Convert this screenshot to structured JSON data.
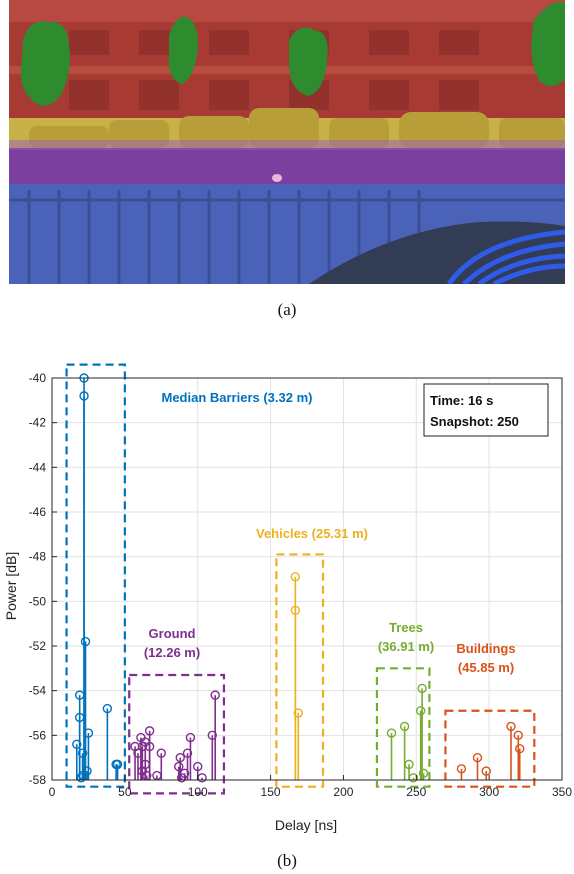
{
  "captions": {
    "top": "(a)",
    "bottom": "(b)"
  },
  "scene": {
    "description_icon": "street-scene-semantic-segmentation",
    "colors": {
      "buildings": "#a83a34",
      "trees": "#2e8b2e",
      "vehicles": "#c9b14a",
      "ground": "#7b3fa0",
      "barrier": "#4a63b8"
    }
  },
  "chart_data": {
    "type": "scatter",
    "xlabel": "Delay [ns]",
    "ylabel": "Power [dB]",
    "xlim": [
      0,
      350
    ],
    "ylim": [
      -58,
      -40
    ],
    "xticks": [
      0,
      50,
      100,
      150,
      200,
      250,
      300,
      350
    ],
    "yticks": [
      -40,
      -42,
      -44,
      -46,
      -48,
      -50,
      -52,
      -54,
      -56,
      -58
    ],
    "grid": true,
    "info_box": {
      "line1": "Time: 16 s",
      "line2": "Snapshot: 250"
    },
    "series": [
      {
        "name": "Median Barriers (3.32 m)",
        "color": "#0072BD",
        "box": {
          "x": [
            10,
            50
          ],
          "y": [
            -58.3,
            -39.4
          ]
        },
        "label_lines": [
          "Median Barriers (3.32 m)"
        ],
        "points": [
          [
            17,
            -56.4
          ],
          [
            19,
            -54.2
          ],
          [
            19,
            -55.2
          ],
          [
            20,
            -57.9
          ],
          [
            21,
            -56.8
          ],
          [
            21,
            -57.8
          ],
          [
            22,
            -40.0
          ],
          [
            22,
            -40.8
          ],
          [
            23,
            -51.8
          ],
          [
            24,
            -57.6
          ],
          [
            25,
            -55.9
          ],
          [
            38,
            -54.8
          ],
          [
            44,
            -57.3
          ],
          [
            45,
            -57.3
          ]
        ]
      },
      {
        "name": "Ground (12.26 m)",
        "color": "#7E2F8E",
        "box": {
          "x": [
            53,
            118
          ],
          "y": [
            -58.6,
            -53.3
          ]
        },
        "label_lines": [
          "Ground",
          "(12.26 m)"
        ],
        "points": [
          [
            57,
            -56.5
          ],
          [
            59,
            -56.8
          ],
          [
            61,
            -56.1
          ],
          [
            62,
            -57.6
          ],
          [
            62,
            -56.5
          ],
          [
            64,
            -57.3
          ],
          [
            64,
            -56.3
          ],
          [
            65,
            -57.8
          ],
          [
            67,
            -56.5
          ],
          [
            67,
            -55.8
          ],
          [
            72,
            -57.8
          ],
          [
            75,
            -56.8
          ],
          [
            87,
            -57.4
          ],
          [
            88,
            -57.0
          ],
          [
            89,
            -57.9
          ],
          [
            91,
            -57.7
          ],
          [
            93,
            -56.8
          ],
          [
            95,
            -56.1
          ],
          [
            100,
            -57.4
          ],
          [
            103,
            -57.9
          ],
          [
            110,
            -56.0
          ],
          [
            112,
            -54.2
          ]
        ]
      },
      {
        "name": "Vehicles (25.31 m)",
        "color": "#EDB120",
        "box": {
          "x": [
            154,
            186
          ],
          "y": [
            -58.3,
            -47.9
          ]
        },
        "label_lines": [
          "Vehicles (25.31 m)"
        ],
        "points": [
          [
            167,
            -48.9
          ],
          [
            167,
            -50.4
          ],
          [
            169,
            -55.0
          ]
        ]
      },
      {
        "name": "Trees (36.91 m)",
        "color": "#77AC30",
        "box": {
          "x": [
            223,
            259
          ],
          "y": [
            -58.3,
            -53.0
          ]
        },
        "label_lines": [
          "Trees",
          "(36.91 m)"
        ],
        "points": [
          [
            233,
            -55.9
          ],
          [
            242,
            -55.6
          ],
          [
            245,
            -57.3
          ],
          [
            248,
            -57.9
          ],
          [
            253,
            -54.9
          ],
          [
            254,
            -53.9
          ],
          [
            255,
            -57.7
          ]
        ]
      },
      {
        "name": "Buildings (45.85 m)",
        "color": "#D95319",
        "box": {
          "x": [
            270,
            331
          ],
          "y": [
            -58.3,
            -54.9
          ]
        },
        "label_lines": [
          "Buildings",
          "(45.85 m)"
        ],
        "points": [
          [
            281,
            -57.5
          ],
          [
            292,
            -57.0
          ],
          [
            298,
            -57.6
          ],
          [
            315,
            -55.6
          ],
          [
            320,
            -56.0
          ],
          [
            321,
            -56.6
          ]
        ]
      }
    ]
  }
}
